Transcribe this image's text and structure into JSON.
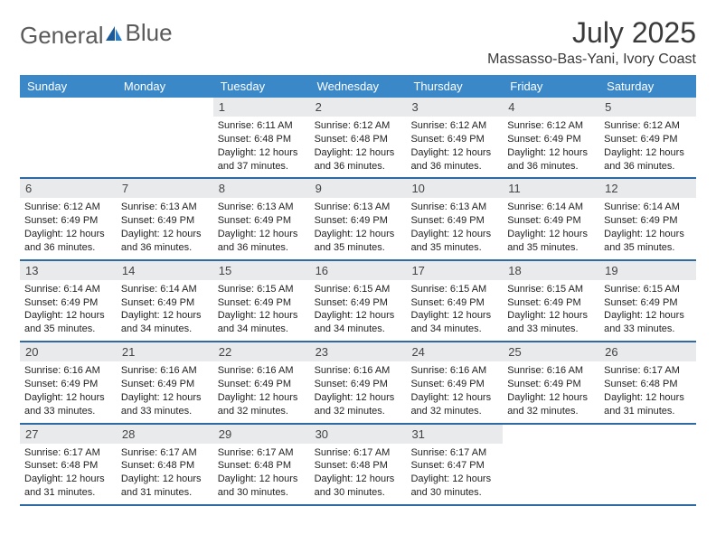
{
  "brand": {
    "name_part1": "General",
    "name_part2": "Blue",
    "text_color": "#5a5a5a",
    "accent_color": "#2a7ec8"
  },
  "header": {
    "month_title": "July 2025",
    "location": "Massasso-Bas-Yani, Ivory Coast"
  },
  "colors": {
    "header_row_bg": "#3b88c8",
    "header_row_text": "#ffffff",
    "day_number_bg": "#e9eaeb",
    "day_number_text": "#444444",
    "week_border": "#2f6aa3",
    "body_text": "#222222",
    "page_bg": "#ffffff"
  },
  "typography": {
    "month_title_size": 32,
    "location_size": 16,
    "day_header_size": 13,
    "day_number_size": 13,
    "cell_content_size": 11
  },
  "day_names": [
    "Sunday",
    "Monday",
    "Tuesday",
    "Wednesday",
    "Thursday",
    "Friday",
    "Saturday"
  ],
  "weeks": [
    [
      {
        "empty": true
      },
      {
        "empty": true
      },
      {
        "num": "1",
        "sunrise": "Sunrise: 6:11 AM",
        "sunset": "Sunset: 6:48 PM",
        "daylight": "Daylight: 12 hours and 37 minutes."
      },
      {
        "num": "2",
        "sunrise": "Sunrise: 6:12 AM",
        "sunset": "Sunset: 6:48 PM",
        "daylight": "Daylight: 12 hours and 36 minutes."
      },
      {
        "num": "3",
        "sunrise": "Sunrise: 6:12 AM",
        "sunset": "Sunset: 6:49 PM",
        "daylight": "Daylight: 12 hours and 36 minutes."
      },
      {
        "num": "4",
        "sunrise": "Sunrise: 6:12 AM",
        "sunset": "Sunset: 6:49 PM",
        "daylight": "Daylight: 12 hours and 36 minutes."
      },
      {
        "num": "5",
        "sunrise": "Sunrise: 6:12 AM",
        "sunset": "Sunset: 6:49 PM",
        "daylight": "Daylight: 12 hours and 36 minutes."
      }
    ],
    [
      {
        "num": "6",
        "sunrise": "Sunrise: 6:12 AM",
        "sunset": "Sunset: 6:49 PM",
        "daylight": "Daylight: 12 hours and 36 minutes."
      },
      {
        "num": "7",
        "sunrise": "Sunrise: 6:13 AM",
        "sunset": "Sunset: 6:49 PM",
        "daylight": "Daylight: 12 hours and 36 minutes."
      },
      {
        "num": "8",
        "sunrise": "Sunrise: 6:13 AM",
        "sunset": "Sunset: 6:49 PM",
        "daylight": "Daylight: 12 hours and 36 minutes."
      },
      {
        "num": "9",
        "sunrise": "Sunrise: 6:13 AM",
        "sunset": "Sunset: 6:49 PM",
        "daylight": "Daylight: 12 hours and 35 minutes."
      },
      {
        "num": "10",
        "sunrise": "Sunrise: 6:13 AM",
        "sunset": "Sunset: 6:49 PM",
        "daylight": "Daylight: 12 hours and 35 minutes."
      },
      {
        "num": "11",
        "sunrise": "Sunrise: 6:14 AM",
        "sunset": "Sunset: 6:49 PM",
        "daylight": "Daylight: 12 hours and 35 minutes."
      },
      {
        "num": "12",
        "sunrise": "Sunrise: 6:14 AM",
        "sunset": "Sunset: 6:49 PM",
        "daylight": "Daylight: 12 hours and 35 minutes."
      }
    ],
    [
      {
        "num": "13",
        "sunrise": "Sunrise: 6:14 AM",
        "sunset": "Sunset: 6:49 PM",
        "daylight": "Daylight: 12 hours and 35 minutes."
      },
      {
        "num": "14",
        "sunrise": "Sunrise: 6:14 AM",
        "sunset": "Sunset: 6:49 PM",
        "daylight": "Daylight: 12 hours and 34 minutes."
      },
      {
        "num": "15",
        "sunrise": "Sunrise: 6:15 AM",
        "sunset": "Sunset: 6:49 PM",
        "daylight": "Daylight: 12 hours and 34 minutes."
      },
      {
        "num": "16",
        "sunrise": "Sunrise: 6:15 AM",
        "sunset": "Sunset: 6:49 PM",
        "daylight": "Daylight: 12 hours and 34 minutes."
      },
      {
        "num": "17",
        "sunrise": "Sunrise: 6:15 AM",
        "sunset": "Sunset: 6:49 PM",
        "daylight": "Daylight: 12 hours and 34 minutes."
      },
      {
        "num": "18",
        "sunrise": "Sunrise: 6:15 AM",
        "sunset": "Sunset: 6:49 PM",
        "daylight": "Daylight: 12 hours and 33 minutes."
      },
      {
        "num": "19",
        "sunrise": "Sunrise: 6:15 AM",
        "sunset": "Sunset: 6:49 PM",
        "daylight": "Daylight: 12 hours and 33 minutes."
      }
    ],
    [
      {
        "num": "20",
        "sunrise": "Sunrise: 6:16 AM",
        "sunset": "Sunset: 6:49 PM",
        "daylight": "Daylight: 12 hours and 33 minutes."
      },
      {
        "num": "21",
        "sunrise": "Sunrise: 6:16 AM",
        "sunset": "Sunset: 6:49 PM",
        "daylight": "Daylight: 12 hours and 33 minutes."
      },
      {
        "num": "22",
        "sunrise": "Sunrise: 6:16 AM",
        "sunset": "Sunset: 6:49 PM",
        "daylight": "Daylight: 12 hours and 32 minutes."
      },
      {
        "num": "23",
        "sunrise": "Sunrise: 6:16 AM",
        "sunset": "Sunset: 6:49 PM",
        "daylight": "Daylight: 12 hours and 32 minutes."
      },
      {
        "num": "24",
        "sunrise": "Sunrise: 6:16 AM",
        "sunset": "Sunset: 6:49 PM",
        "daylight": "Daylight: 12 hours and 32 minutes."
      },
      {
        "num": "25",
        "sunrise": "Sunrise: 6:16 AM",
        "sunset": "Sunset: 6:49 PM",
        "daylight": "Daylight: 12 hours and 32 minutes."
      },
      {
        "num": "26",
        "sunrise": "Sunrise: 6:17 AM",
        "sunset": "Sunset: 6:48 PM",
        "daylight": "Daylight: 12 hours and 31 minutes."
      }
    ],
    [
      {
        "num": "27",
        "sunrise": "Sunrise: 6:17 AM",
        "sunset": "Sunset: 6:48 PM",
        "daylight": "Daylight: 12 hours and 31 minutes."
      },
      {
        "num": "28",
        "sunrise": "Sunrise: 6:17 AM",
        "sunset": "Sunset: 6:48 PM",
        "daylight": "Daylight: 12 hours and 31 minutes."
      },
      {
        "num": "29",
        "sunrise": "Sunrise: 6:17 AM",
        "sunset": "Sunset: 6:48 PM",
        "daylight": "Daylight: 12 hours and 30 minutes."
      },
      {
        "num": "30",
        "sunrise": "Sunrise: 6:17 AM",
        "sunset": "Sunset: 6:48 PM",
        "daylight": "Daylight: 12 hours and 30 minutes."
      },
      {
        "num": "31",
        "sunrise": "Sunrise: 6:17 AM",
        "sunset": "Sunset: 6:47 PM",
        "daylight": "Daylight: 12 hours and 30 minutes."
      },
      {
        "empty": true
      },
      {
        "empty": true
      }
    ]
  ]
}
